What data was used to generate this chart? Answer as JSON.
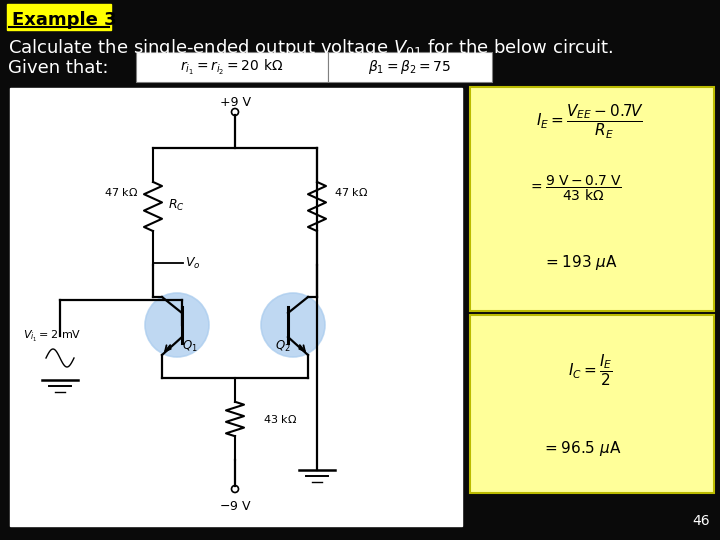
{
  "background_color": "#0a0a0a",
  "title_box_color": "#ffff00",
  "title_text": "Example 3",
  "title_fontsize": 13,
  "heading_text": "Calculate the single-ended output voltage $V_{01}$ for the below circuit.",
  "heading_text2": "Given that:",
  "heading_fontsize": 13,
  "given_box1_text": "$r_{i_1} = r_{i_2} = 20\\ \\mathrm{k\\Omega}$",
  "given_box2_text": "$\\beta_1 = \\beta_2 = 75$",
  "given_box_color": "#ffffff",
  "circuit_box_color": "#ffffff",
  "formula_box1_color": "#ffff99",
  "formula_box2_color": "#ffff99",
  "formula1_line1": "$I_E = \\dfrac{V_{EE} - 0.7V}{R_E}$",
  "formula1_line2": "$= \\dfrac{9\\ \\mathrm{V} - 0.7\\ \\mathrm{V}}{43\\ \\mathrm{k\\Omega}}$",
  "formula1_line3": "$= 193\\ \\mu\\mathrm{A}$",
  "formula2_line1": "$I_C = \\dfrac{I_E}{2}$",
  "formula2_line2": "$= 96.5\\ \\mu\\mathrm{A}$",
  "page_number": "46"
}
